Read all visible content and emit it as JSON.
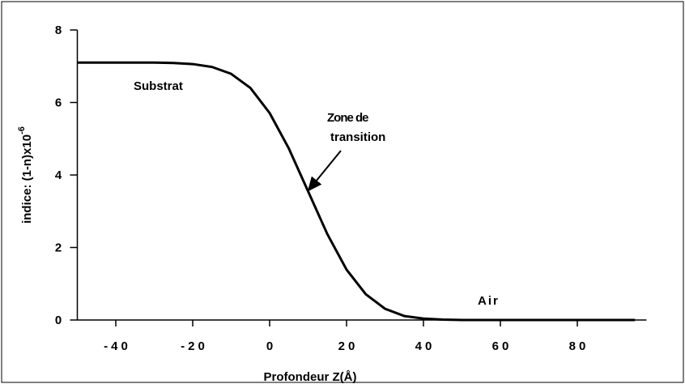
{
  "chart_data": {
    "type": "line",
    "ylabel": "indice:  (1-n)x10",
    "ylabel_exponent": "-6",
    "xlabel": "Profondeur  Z(Å)",
    "annotations": [
      "Substrat",
      [
        "Zone de",
        "transition"
      ],
      "Air"
    ],
    "x": [
      -50,
      -45,
      -40,
      -35,
      -30,
      -25,
      -20,
      -15,
      -10,
      -5,
      0,
      5,
      10,
      15,
      20,
      25,
      30,
      35,
      40,
      45,
      50,
      55,
      60,
      65,
      70,
      75,
      80,
      85,
      90,
      95
    ],
    "series": [
      {
        "color": "#000000",
        "values": [
          7.1,
          7.1,
          7.1,
          7.1,
          7.1,
          7.09,
          7.06,
          6.98,
          6.79,
          6.4,
          5.71,
          4.73,
          3.55,
          2.37,
          1.39,
          0.71,
          0.31,
          0.11,
          0.04,
          0.01,
          0,
          0,
          0,
          0,
          0,
          0,
          0,
          0,
          0,
          0
        ]
      }
    ],
    "xlim": [
      -50,
      98
    ],
    "xticks": [
      -40,
      -20,
      0,
      20,
      40,
      60,
      80
    ],
    "ylim": [
      0,
      8
    ],
    "yticks": [
      0,
      2,
      4,
      6,
      8
    ]
  }
}
